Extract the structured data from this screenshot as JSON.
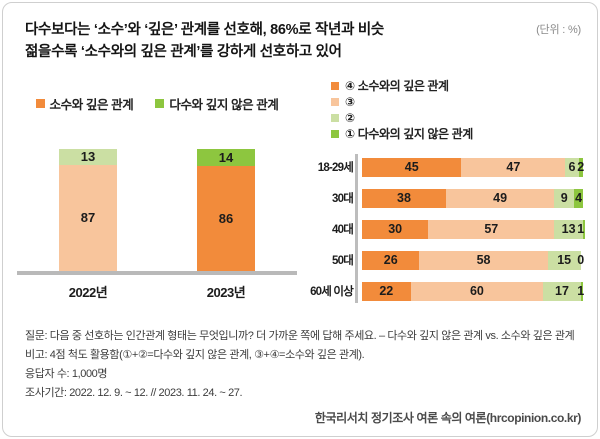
{
  "header": {
    "title_line1": "다수보다는 ‘소수’와 ‘깊은’ 관계를 선호해, 86%로 작년과 비슷",
    "title_line2": "젊을수록 ‘소수와의 깊은 관계’를 강하게 선호하고 있어",
    "unit_label": "(단위 : %)"
  },
  "colors": {
    "orange": "#F28B3B",
    "peach": "#F8C59C",
    "light_green": "#CBDFA3",
    "green": "#8DC63F",
    "baseline_gray": "#B9B9B9",
    "axis_gray": "#BDBDBD"
  },
  "chart_data": [
    {
      "type": "bar",
      "orientation": "vertical",
      "stacked": true,
      "categories": [
        "2022년",
        "2023년"
      ],
      "series": [
        {
          "name": "소수와 깊은 관계",
          "values": [
            87,
            86
          ],
          "segment_colors": [
            "#F8C59C",
            "#F28B3B"
          ],
          "legend_color": "#F28B3B"
        },
        {
          "name": "다수와 깊지 않은 관계",
          "values": [
            13,
            14
          ],
          "segment_colors": [
            "#CBDFA3",
            "#8DC63F"
          ],
          "legend_color": "#8DC63F"
        }
      ],
      "ylim": [
        0,
        100
      ],
      "grid": false,
      "legend_position": "top"
    },
    {
      "type": "bar",
      "orientation": "horizontal",
      "stacked": true,
      "categories": [
        "18-29세",
        "30대",
        "40대",
        "50대",
        "60세 이상"
      ],
      "series": [
        {
          "name": "④ 소수와의 깊은 관계",
          "color": "#F28B3B",
          "values": [
            45,
            38,
            30,
            26,
            22
          ]
        },
        {
          "name": "③",
          "color": "#F8C59C",
          "values": [
            47,
            49,
            57,
            58,
            60
          ]
        },
        {
          "name": "②",
          "color": "#CBDFA3",
          "values": [
            6,
            9,
            13,
            15,
            17
          ]
        },
        {
          "name": "① 다수와의 깊지 않은 관계",
          "color": "#8DC63F",
          "values": [
            2,
            4,
            1,
            0,
            1
          ]
        }
      ],
      "xlim": [
        0,
        100
      ],
      "grid": false,
      "legend_position": "top"
    }
  ],
  "footer": {
    "notes": [
      "질문: 다음 중 선호하는 인간관계 형태는 무엇입니까? 더 가까운 쪽에 답해 주세요. – 다수와 깊지 않은 관계 vs. 소수와 깊은 관계",
      "비고: 4점 척도 활용함(①+②=다수와 깊지 않은 관계, ③+④=소수와 깊은 관계).",
      "응답자 수: 1,000명",
      "조사기간: 2022. 12. 9. ~ 12. // 2023. 11. 24. ~ 27."
    ],
    "source": "한국리서치 정기조사 여론 속의 여론(hrcopinion.co.kr)"
  }
}
